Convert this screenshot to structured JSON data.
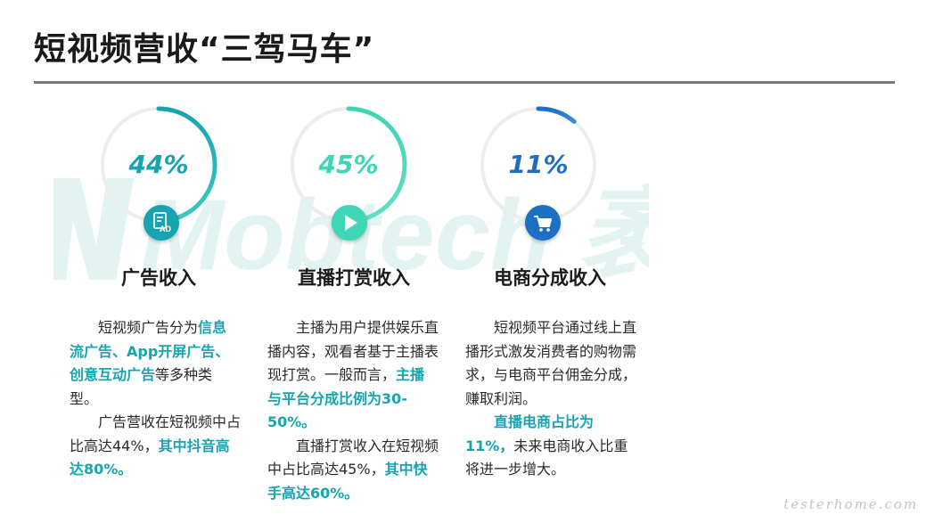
{
  "title": "短视频营收“三驾马车”",
  "watermark": "Mobtech 袤博",
  "corner_mark": "testerhome.com",
  "colors": {
    "teal": "#15a4b0",
    "mint": "#3ed6b4",
    "blue": "#1d6fc4",
    "ring_track": "#eeeeee"
  },
  "columns": [
    {
      "percent_label": "44%",
      "percent_value": 44,
      "icon": "ad-icon",
      "heading": "广告收入",
      "paragraphs": [
        [
          {
            "t": "短视频广告分为",
            "hl": false
          },
          {
            "t": "信息流广告、App开屏广告、创意互动广告",
            "hl": true
          },
          {
            "t": "等多种类型。",
            "hl": false
          }
        ],
        [
          {
            "t": "广告营收在短视频中占比高达44%，",
            "hl": false
          },
          {
            "t": "其中抖音高达80%。",
            "hl": true
          }
        ]
      ]
    },
    {
      "percent_label": "45%",
      "percent_value": 45,
      "icon": "play-icon",
      "heading": "直播打赏收入",
      "paragraphs": [
        [
          {
            "t": "主播为用户提供娱乐直播内容，观看者基于主播表现打赏。一般而言，",
            "hl": false
          },
          {
            "t": "主播与平台分成比例为30-50%。",
            "hl": true
          }
        ],
        [
          {
            "t": "直播打赏收入在短视频中占比高达45%，",
            "hl": false
          },
          {
            "t": "其中快手高达60%。",
            "hl": true
          }
        ]
      ]
    },
    {
      "percent_label": "11%",
      "percent_value": 11,
      "icon": "cart-icon",
      "heading": "电商分成收入",
      "paragraphs": [
        [
          {
            "t": "短视频平台通过线上直播形式激发消费者的购物需求，与电商平台佣金分成，赚取利润。",
            "hl": false
          }
        ],
        [
          {
            "t": "直播电商占比为11%，",
            "hl": true
          },
          {
            "t": "未来电商收入比重将进一步增大。",
            "hl": false
          }
        ]
      ]
    }
  ]
}
